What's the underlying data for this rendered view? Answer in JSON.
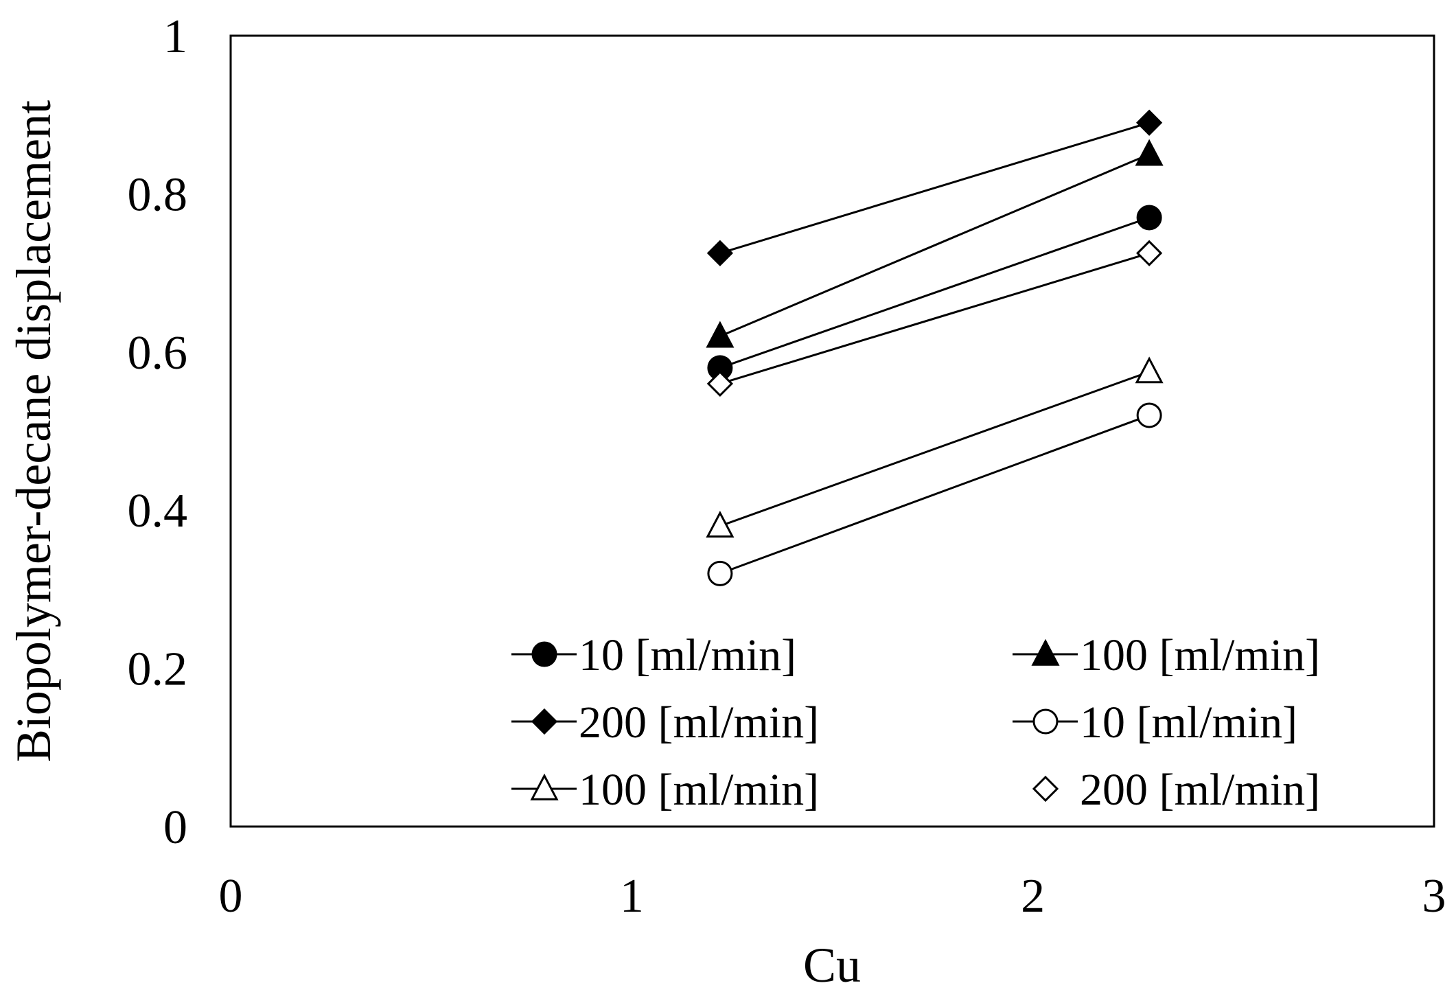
{
  "chart_data": {
    "type": "line",
    "title": "",
    "xlabel": "Cu",
    "ylabel": "Biopolymer-decane displacement",
    "xlim": [
      0,
      3
    ],
    "ylim": [
      0,
      1
    ],
    "x_ticks": [
      "0",
      "1",
      "2",
      "3"
    ],
    "y_ticks": [
      "0",
      "0.2",
      "0.4",
      "0.6",
      "0.8",
      "1"
    ],
    "grid": false,
    "legend_position": "bottom-center inside plot, two columns",
    "series": [
      {
        "name": "10 [ml/min]",
        "marker": "circle",
        "filled": true,
        "x": [
          1.22,
          2.29
        ],
        "y": [
          0.58,
          0.77
        ]
      },
      {
        "name": "100 [ml/min]",
        "marker": "triangle",
        "filled": true,
        "x": [
          1.22,
          2.29
        ],
        "y": [
          0.62,
          0.85
        ]
      },
      {
        "name": "200 [ml/min]",
        "marker": "diamond",
        "filled": true,
        "x": [
          1.22,
          2.29
        ],
        "y": [
          0.725,
          0.89
        ]
      },
      {
        "name": "10 [ml/min]",
        "marker": "circle",
        "filled": false,
        "x": [
          1.22,
          2.29
        ],
        "y": [
          0.32,
          0.52
        ]
      },
      {
        "name": "100 [ml/min]",
        "marker": "triangle",
        "filled": false,
        "x": [
          1.22,
          2.29
        ],
        "y": [
          0.38,
          0.575
        ]
      },
      {
        "name": "200 [ml/min]",
        "marker": "diamond",
        "filled": false,
        "x": [
          1.22,
          2.29
        ],
        "y": [
          0.56,
          0.725
        ]
      }
    ]
  }
}
